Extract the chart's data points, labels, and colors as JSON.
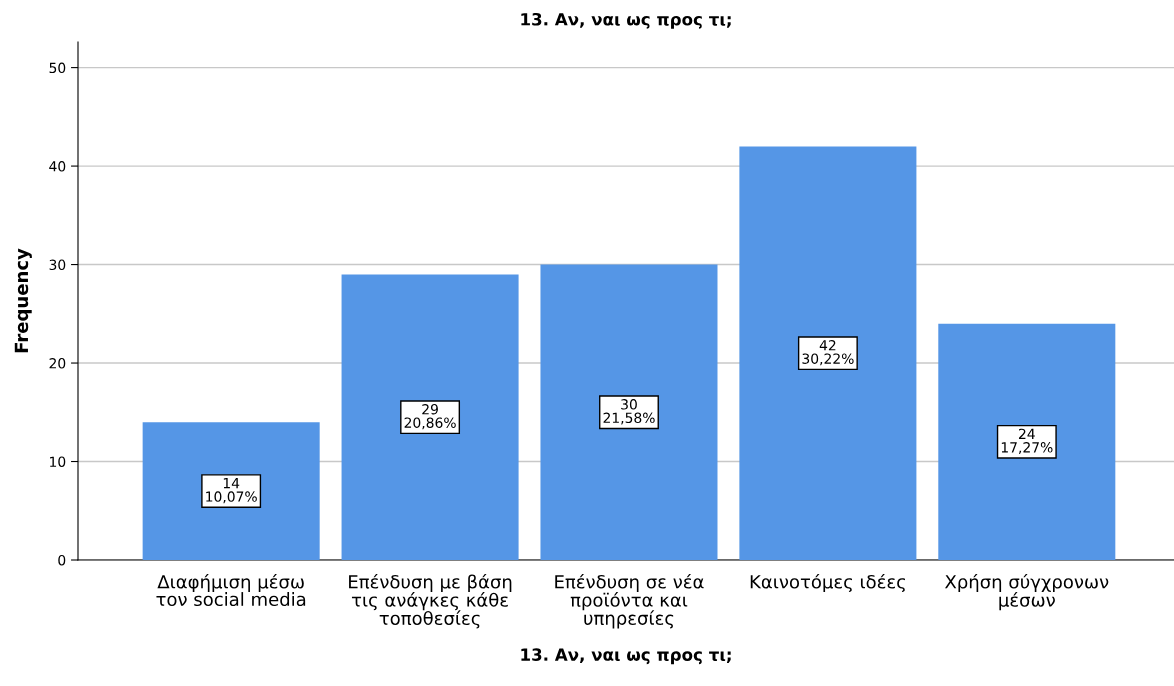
{
  "chart_data": {
    "type": "bar",
    "title": "13. Αν, ναι ως προς τι;",
    "xlabel": "13. Αν, ναι ως προς τι;",
    "ylabel": "Frequency",
    "categories": [
      "Διαφήμιση μέσω\nτον social media",
      "Επένδυση με βάση\nτις ανάγκες κάθε\nτοποθεσίες",
      "Επένδυση σε νέα\nπροϊόντα και\nυπηρεσίες",
      "Καινοτόμες ιδέες",
      "Χρήση σύγχρονων\nμέσων"
    ],
    "values": [
      14,
      29,
      30,
      42,
      24
    ],
    "value_labels": [
      "14\n10,07%",
      "29\n20,86%",
      "30\n21,58%",
      "42\n30,22%",
      "24\n17,27%"
    ],
    "color": "#5596e6",
    "ylim": [
      0,
      52.6
    ],
    "yticks": [
      0,
      10,
      20,
      30,
      40,
      50
    ],
    "grid": "y"
  }
}
